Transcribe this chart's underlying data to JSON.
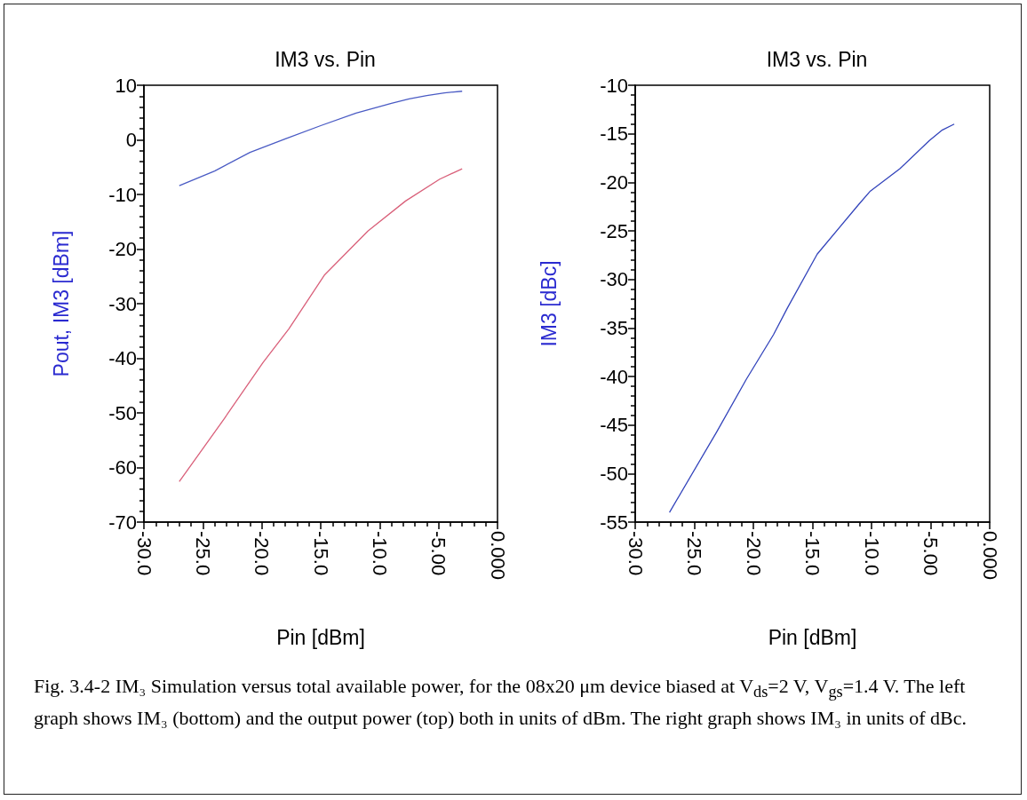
{
  "chart_data": [
    {
      "type": "line",
      "title": "IM3 vs. Pin",
      "xlabel": "Pin [dBm]",
      "ylabel": "Pout, IM3 [dBm]",
      "xlim": [
        -30,
        0
      ],
      "xticks": [
        {
          "value": -30,
          "label": "-30.0"
        },
        {
          "value": -25,
          "label": "-25.0"
        },
        {
          "value": -20,
          "label": "-20.0"
        },
        {
          "value": -15,
          "label": "-15.0"
        },
        {
          "value": -10,
          "label": "-10.0"
        },
        {
          "value": -5,
          "label": "-5.00"
        },
        {
          "value": 0,
          "label": "0.000"
        }
      ],
      "ylim": [
        -70,
        10
      ],
      "yticks": [
        -70,
        -60,
        -50,
        -40,
        -30,
        -20,
        -10,
        0,
        10
      ],
      "series": [
        {
          "color": "#4a5bc4",
          "x": [
            -27,
            -24,
            -21,
            -18,
            -15,
            -12,
            -10.5,
            -9,
            -7.5,
            -6,
            -4.5,
            -3
          ],
          "values": [
            -8.4,
            -5.7,
            -2.3,
            0.2,
            2.6,
            4.9,
            5.8,
            6.7,
            7.5,
            8.1,
            8.6,
            8.9
          ]
        },
        {
          "color": "#d9607a",
          "x": [
            -27,
            -23.2,
            -19.9,
            -17.7,
            -14.7,
            -11,
            -7.8,
            -4.9,
            -3
          ],
          "values": [
            -62.6,
            -51.1,
            -40.8,
            -34.6,
            -24.8,
            -16.7,
            -11.2,
            -7.2,
            -5.3
          ]
        }
      ],
      "annotations": [
        "Fig. 3.4-2 IM₃ Simulation versus total available power, for the 08x20 μm device biased at V$_{ds}$=2 V, V$_{gs}$=1.4 V. The left graph shows IM₃ (bottom) and the output power (top) both in units of dBm. The right graph shows IM₃ in units of dBc."
      ]
    },
    {
      "type": "line",
      "title": "IM3 vs. Pin",
      "xlabel": "Pin [dBm]",
      "ylabel": "IM3 [dBc]",
      "xlim": [
        -30,
        0
      ],
      "xticks": [
        {
          "value": -30,
          "label": "-30.0"
        },
        {
          "value": -25,
          "label": "-25.0"
        },
        {
          "value": -20,
          "label": "-20.0"
        },
        {
          "value": -15,
          "label": "-15.0"
        },
        {
          "value": -10,
          "label": "-10.0"
        },
        {
          "value": -5,
          "label": "-5.00"
        },
        {
          "value": 0,
          "label": "0.000"
        }
      ],
      "ylim": [
        -55,
        -10
      ],
      "yticks": [
        -55,
        -50,
        -45,
        -40,
        -35,
        -30,
        -25,
        -20,
        -15,
        -10
      ],
      "series": [
        {
          "color": "#3344bb",
          "x": [
            -27.1,
            -23.1,
            -20.6,
            -18.3,
            -17.1,
            -14.6,
            -11.1,
            -10.1,
            -7.6,
            -5.1,
            -4,
            -3
          ],
          "values": [
            -54,
            -45.7,
            -40.3,
            -35.7,
            -32.9,
            -27.4,
            -22.3,
            -20.9,
            -18.6,
            -15.7,
            -14.6,
            -14
          ]
        }
      ]
    }
  ]
}
